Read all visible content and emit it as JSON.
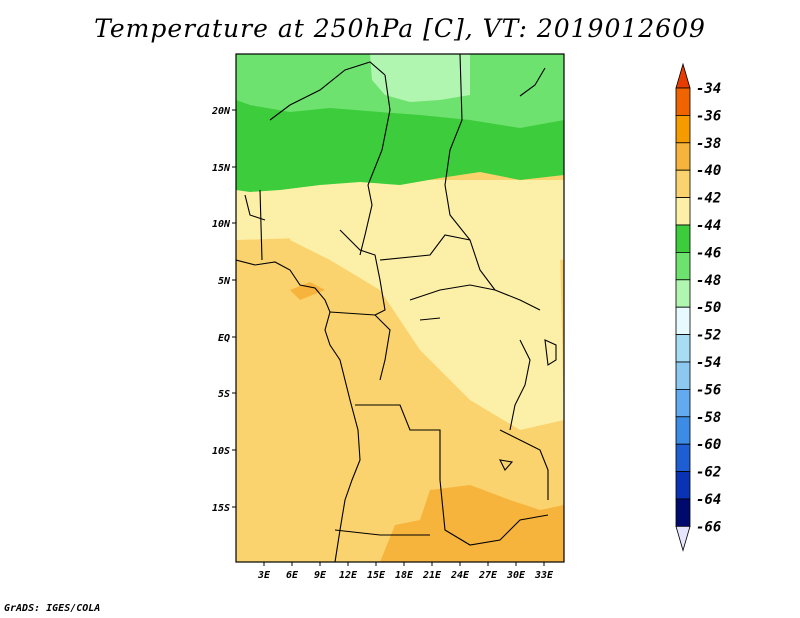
{
  "title": "Temperature at 250hPa [C], VT: 2019012609",
  "credit": "GrADS: IGES/COLA",
  "map": {
    "lat_labels": [
      "20N",
      "15N",
      "10N",
      "5N",
      "EQ",
      "5S",
      "10S",
      "15S"
    ],
    "lon_labels": [
      "3E",
      "6E",
      "9E",
      "12E",
      "15E",
      "18E",
      "21E",
      "24E",
      "27E",
      "30E",
      "33E"
    ]
  },
  "colorbar": {
    "labels": [
      "-34",
      "-36",
      "-38",
      "-40",
      "-42",
      "-44",
      "-46",
      "-48",
      "-50",
      "-52",
      "-54",
      "-56",
      "-58",
      "-60",
      "-62",
      "-64",
      "-66"
    ],
    "colors": [
      "#e63c00",
      "#f06400",
      "#f59b00",
      "#f7b43c",
      "#fbd36e",
      "#fcf0a8",
      "#3ccc3c",
      "#6ee26e",
      "#b0f5b0",
      "#e6faff",
      "#a8dcf5",
      "#8cc8f0",
      "#64aaf0",
      "#3c8ce6",
      "#1e5ed2",
      "#0a32b4",
      "#000a6e",
      "#e6e6ff"
    ]
  }
}
